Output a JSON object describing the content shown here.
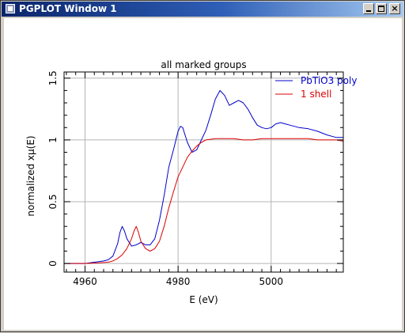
{
  "window": {
    "title": "PGPLOT Window 1",
    "title_icon": "pgplot-app-icon",
    "controls": [
      "minimize-icon",
      "maximize-icon",
      "close-icon"
    ]
  },
  "colors": {
    "series_1": "#0000cc",
    "series_2": "#dd0000",
    "grid": "#b4b4b4",
    "axes": "#000000"
  },
  "chart_data": {
    "type": "line",
    "title": "all marked groups",
    "xlabel": "E (eV)",
    "ylabel": "normalized xμ(E)",
    "xlim": [
      4955.5,
      5015.5
    ],
    "ylim": [
      -0.07,
      1.55
    ],
    "xticks": [
      4960,
      4980,
      5000
    ],
    "xtick_labels": [
      "4960",
      "4980",
      "5000"
    ],
    "yticks": [
      0,
      0.5,
      1,
      1.5
    ],
    "ytick_labels": [
      "0",
      "0.5",
      "1",
      "1.5"
    ],
    "grid": true,
    "legend_position": "top-right",
    "series": [
      {
        "name": "PbTiO3 poly",
        "color": "#0000cc",
        "x": [
          4955.5,
          4958,
          4960,
          4962,
          4963,
          4964,
          4965,
          4966,
          4967,
          4967.5,
          4968,
          4968.5,
          4969,
          4970,
          4971,
          4972,
          4973,
          4974,
          4975,
          4976,
          4977,
          4978,
          4979,
          4980,
          4980.5,
          4981,
          4982,
          4983,
          4984,
          4985,
          4986,
          4987,
          4988,
          4989,
          4990,
          4991,
          4992,
          4993,
          4994,
          4995,
          4996,
          4997,
          4998,
          4999,
          5000,
          5001,
          5002,
          5003,
          5004,
          5005,
          5006,
          5008,
          5010,
          5012,
          5014,
          5015.5
        ],
        "y": [
          0.0,
          0.0,
          0.0,
          0.01,
          0.015,
          0.02,
          0.03,
          0.06,
          0.16,
          0.25,
          0.3,
          0.26,
          0.2,
          0.14,
          0.15,
          0.17,
          0.15,
          0.15,
          0.2,
          0.35,
          0.55,
          0.78,
          0.92,
          1.07,
          1.11,
          1.1,
          0.98,
          0.9,
          0.92,
          1.0,
          1.08,
          1.2,
          1.33,
          1.4,
          1.36,
          1.28,
          1.3,
          1.32,
          1.3,
          1.25,
          1.18,
          1.12,
          1.1,
          1.09,
          1.1,
          1.13,
          1.14,
          1.13,
          1.12,
          1.11,
          1.1,
          1.09,
          1.07,
          1.04,
          1.02,
          1.02
        ]
      },
      {
        "name": "1 shell",
        "color": "#dd0000",
        "x": [
          4955.5,
          4960,
          4963,
          4965,
          4966,
          4967,
          4968,
          4969,
          4970,
          4970.5,
          4971,
          4971.5,
          4972,
          4973,
          4974,
          4975,
          4976,
          4977,
          4978,
          4979,
          4980,
          4981,
          4982,
          4983,
          4984,
          4985,
          4986,
          4988,
          4990,
          4992,
          4994,
          4996,
          4998,
          5000,
          5002,
          5004,
          5006,
          5008,
          5010,
          5012,
          5014,
          5015.5
        ],
        "y": [
          0.0,
          0.0,
          0.005,
          0.01,
          0.02,
          0.04,
          0.07,
          0.12,
          0.2,
          0.26,
          0.3,
          0.25,
          0.18,
          0.12,
          0.1,
          0.12,
          0.18,
          0.3,
          0.45,
          0.58,
          0.7,
          0.78,
          0.86,
          0.91,
          0.95,
          0.98,
          1.0,
          1.01,
          1.01,
          1.01,
          1.0,
          1.0,
          1.01,
          1.01,
          1.01,
          1.01,
          1.01,
          1.01,
          1.0,
          1.0,
          1.0,
          0.99
        ]
      }
    ]
  }
}
